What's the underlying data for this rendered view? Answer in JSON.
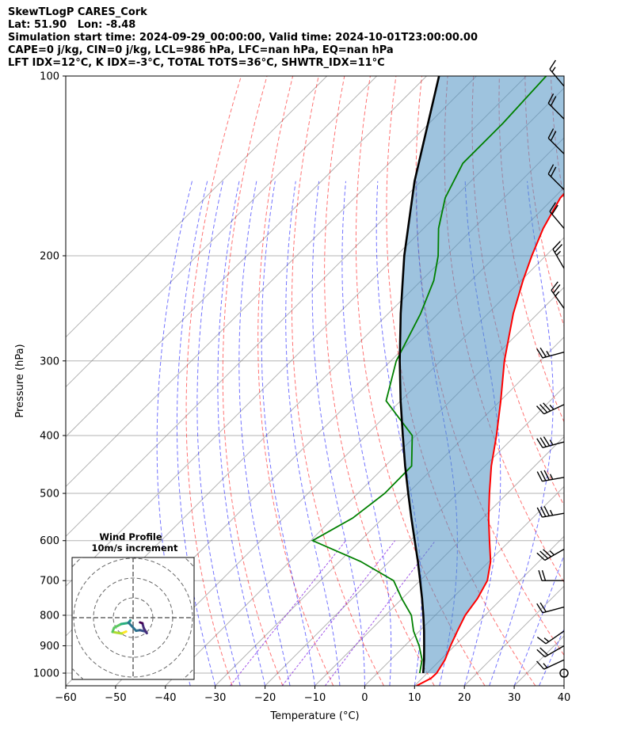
{
  "header": {
    "line1": "SkewTLogP CARES_Cork",
    "line2": "Lat: 51.90   Lon: -8.48",
    "line3": "Simulation start time: 2024-09-29_00:00:00, Valid time: 2024-10-01T23:00:00.00",
    "line4": "CAPE=0 j/kg, CIN=0 j/kg, LCL=986 hPa, LFC=nan hPa, EQ=nan hPa",
    "line5": "LFT IDX=12°C, K IDX=-3°C, TOTAL TOTS=36°C, SHWTR_IDX=11°C"
  },
  "chart_data": {
    "type": "line",
    "title": "SkewTLogP CARES_Cork",
    "xlabel": "Temperature (°C)",
    "ylabel": "Pressure (hPa)",
    "xlim": [
      -60,
      40
    ],
    "ylim": [
      1050,
      100
    ],
    "y_scale": "log",
    "skew": "45 degrees",
    "grid": true,
    "x_ticks": [
      -60,
      -50,
      -40,
      -30,
      -20,
      -10,
      0,
      10,
      20,
      30,
      40
    ],
    "x_tick_labels": [
      "−60",
      "−50",
      "−40",
      "−30",
      "−20",
      "−10",
      "0",
      "10",
      "20",
      "30",
      "40"
    ],
    "y_ticks": [
      1000,
      900,
      800,
      700,
      600,
      500,
      400,
      300,
      200,
      100
    ],
    "y_tick_labels": [
      "1000",
      "900",
      "800",
      "700",
      "600",
      "500",
      "400",
      "300",
      "200",
      "100"
    ],
    "colors": {
      "temperature": "#ff0000",
      "dewpoint": "#008000",
      "parcel": "#000000",
      "cape_fill": "#4f91c2",
      "dry_adiabat": "#ff0000",
      "moist_adiabat": "#0000ff",
      "mixing_ratio": "#8a2be2",
      "isotherm": "#808080"
    },
    "series": [
      {
        "name": "temperature",
        "values": [
          {
            "p": 1050,
            "t": 10.4
          },
          {
            "p": 1020,
            "t": 11.8
          },
          {
            "p": 1000,
            "t": 11.9
          },
          {
            "p": 950,
            "t": 10.9
          },
          {
            "p": 900,
            "t": 9.2
          },
          {
            "p": 850,
            "t": 7.6
          },
          {
            "p": 800,
            "t": 6.0
          },
          {
            "p": 750,
            "t": 5.1
          },
          {
            "p": 700,
            "t": 3.5
          },
          {
            "p": 650,
            "t": 0.3
          },
          {
            "p": 600,
            "t": -4.1
          },
          {
            "p": 550,
            "t": -8.8
          },
          {
            "p": 500,
            "t": -13.6
          },
          {
            "p": 450,
            "t": -18.7
          },
          {
            "p": 400,
            "t": -23.8
          },
          {
            "p": 350,
            "t": -29.9
          },
          {
            "p": 300,
            "t": -37.2
          },
          {
            "p": 250,
            "t": -44.9
          },
          {
            "p": 220,
            "t": -49.6
          },
          {
            "p": 200,
            "t": -52.8
          },
          {
            "p": 180,
            "t": -56.0
          },
          {
            "p": 160,
            "t": -58.7
          },
          {
            "p": 140,
            "t": -59.2
          },
          {
            "p": 120,
            "t": -59.8
          },
          {
            "p": 100,
            "t": -62.8
          }
        ]
      },
      {
        "name": "dewpoint",
        "values": [
          {
            "p": 1000,
            "t": 8.5
          },
          {
            "p": 950,
            "t": 6.3
          },
          {
            "p": 900,
            "t": 2.9
          },
          {
            "p": 850,
            "t": -1.2
          },
          {
            "p": 800,
            "t": -4.8
          },
          {
            "p": 750,
            "t": -10.1
          },
          {
            "p": 700,
            "t": -15.3
          },
          {
            "p": 650,
            "t": -25.8
          },
          {
            "p": 600,
            "t": -39.6
          },
          {
            "p": 550,
            "t": -36.1
          },
          {
            "p": 500,
            "t": -34.6
          },
          {
            "p": 450,
            "t": -34.7
          },
          {
            "p": 400,
            "t": -40.7
          },
          {
            "p": 350,
            "t": -52.9
          },
          {
            "p": 300,
            "t": -58.9
          },
          {
            "p": 250,
            "t": -63.5
          },
          {
            "p": 220,
            "t": -67.5
          },
          {
            "p": 200,
            "t": -71.6
          },
          {
            "p": 180,
            "t": -77.0
          },
          {
            "p": 160,
            "t": -81.8
          },
          {
            "p": 140,
            "t": -85.2
          },
          {
            "p": 120,
            "t": -85.2
          },
          {
            "p": 100,
            "t": -86.0
          }
        ]
      },
      {
        "name": "parcel",
        "values": [
          {
            "p": 1000,
            "t": 9.2
          },
          {
            "p": 950,
            "t": 6.7
          },
          {
            "p": 900,
            "t": 3.9
          },
          {
            "p": 850,
            "t": 0.9
          },
          {
            "p": 800,
            "t": -2.4
          },
          {
            "p": 750,
            "t": -6.0
          },
          {
            "p": 700,
            "t": -10.0
          },
          {
            "p": 650,
            "t": -14.3
          },
          {
            "p": 600,
            "t": -19.1
          },
          {
            "p": 550,
            "t": -24.3
          },
          {
            "p": 500,
            "t": -29.9
          },
          {
            "p": 450,
            "t": -36.0
          },
          {
            "p": 400,
            "t": -42.6
          },
          {
            "p": 350,
            "t": -50.0
          },
          {
            "p": 300,
            "t": -58.2
          },
          {
            "p": 250,
            "t": -67.5
          },
          {
            "p": 200,
            "t": -78.4
          },
          {
            "p": 150,
            "t": -91.3
          },
          {
            "p": 100,
            "t": -107.5
          }
        ]
      }
    ],
    "wind_barbs": [
      {
        "p": 1000,
        "calm": true
      },
      {
        "p": 950,
        "speed_kt": 15,
        "dir_deg": 245
      },
      {
        "p": 900,
        "speed_kt": 20,
        "dir_deg": 240
      },
      {
        "p": 850,
        "speed_kt": 15,
        "dir_deg": 235
      },
      {
        "p": 775,
        "speed_kt": 20,
        "dir_deg": 255
      },
      {
        "p": 700,
        "speed_kt": 20,
        "dir_deg": 270
      },
      {
        "p": 620,
        "speed_kt": 35,
        "dir_deg": 240
      },
      {
        "p": 540,
        "speed_kt": 35,
        "dir_deg": 260
      },
      {
        "p": 470,
        "speed_kt": 35,
        "dir_deg": 260
      },
      {
        "p": 410,
        "speed_kt": 35,
        "dir_deg": 255
      },
      {
        "p": 355,
        "speed_kt": 35,
        "dir_deg": 245
      },
      {
        "p": 290,
        "speed_kt": 25,
        "dir_deg": 255
      },
      {
        "p": 245,
        "speed_kt": 25,
        "dir_deg": 325
      },
      {
        "p": 210,
        "speed_kt": 25,
        "dir_deg": 330
      },
      {
        "p": 180,
        "speed_kt": 20,
        "dir_deg": 320
      },
      {
        "p": 155,
        "speed_kt": 20,
        "dir_deg": 315
      },
      {
        "p": 135,
        "speed_kt": 20,
        "dir_deg": 315
      },
      {
        "p": 118,
        "speed_kt": 20,
        "dir_deg": 315
      },
      {
        "p": 104,
        "speed_kt": 15,
        "dir_deg": 320
      }
    ],
    "inset": {
      "type": "hodograph",
      "title": "Wind Profile",
      "subtitle": "10m/s increment",
      "ring_increment_ms": 10,
      "colormap": "viridis",
      "points": [
        {
          "u": -3.5,
          "v": -7.0
        },
        {
          "u": -5.8,
          "v": -8.0
        },
        {
          "u": -8.2,
          "v": -7.6
        },
        {
          "u": -10.4,
          "v": -7.2
        },
        {
          "u": -9.6,
          "v": -5.1
        },
        {
          "u": -6.0,
          "v": -3.2
        },
        {
          "u": -2.1,
          "v": -2.6
        },
        {
          "u": -1.4,
          "v": -1.4
        },
        {
          "u": -2.3,
          "v": -2.5
        },
        {
          "u": 1.5,
          "v": -6.6
        },
        {
          "u": 3.5,
          "v": -6.3
        },
        {
          "u": 6.3,
          "v": -7.0
        },
        {
          "u": 6.9,
          "v": -7.8
        },
        {
          "u": 5.4,
          "v": -5.3
        },
        {
          "u": 4.7,
          "v": -2.8
        },
        {
          "u": 3.5,
          "v": -2.4
        }
      ]
    }
  }
}
